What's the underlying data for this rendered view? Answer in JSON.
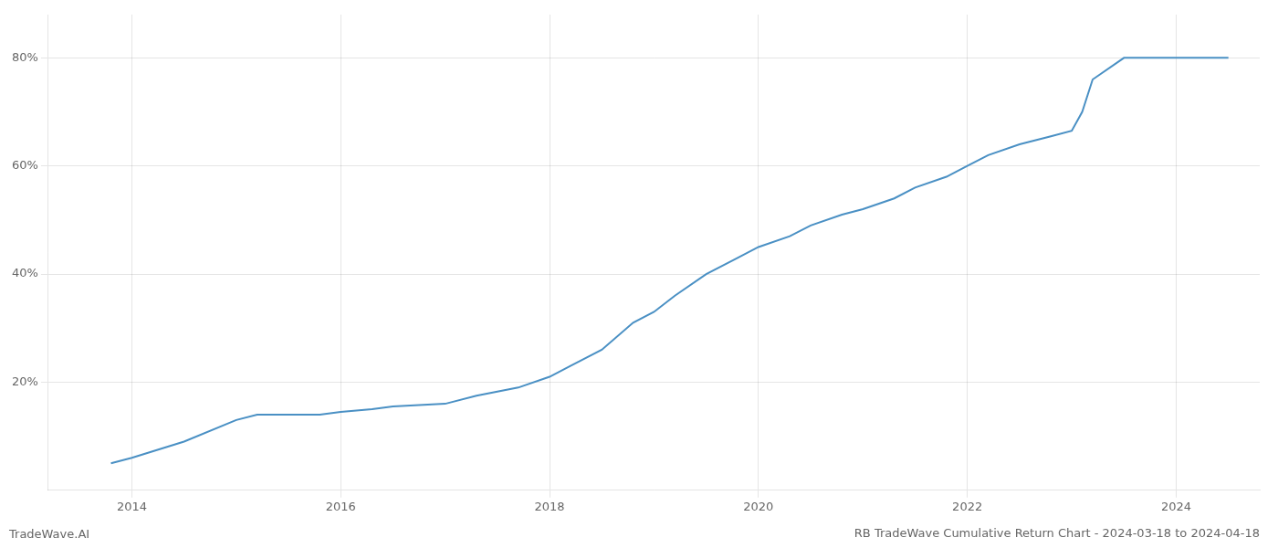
{
  "chart_data": {
    "type": "line",
    "title": "RB TradeWave Cumulative Return Chart - 2024-03-18 to 2024-04-18",
    "annotations": [
      "TradeWave.AI"
    ],
    "x": [
      2013.8,
      2014.0,
      2014.5,
      2015.0,
      2015.2,
      2015.8,
      2016.0,
      2016.3,
      2016.5,
      2017.0,
      2017.3,
      2017.7,
      2018.0,
      2018.2,
      2018.5,
      2018.8,
      2019.0,
      2019.2,
      2019.5,
      2019.8,
      2020.0,
      2020.3,
      2020.5,
      2020.8,
      2021.0,
      2021.3,
      2021.5,
      2021.8,
      2022.0,
      2022.2,
      2022.5,
      2022.8,
      2023.0,
      2023.1,
      2023.2,
      2023.5,
      2024.0,
      2024.3,
      2024.5
    ],
    "values": [
      0.05,
      0.06,
      0.09,
      0.13,
      0.14,
      0.14,
      0.145,
      0.15,
      0.155,
      0.16,
      0.175,
      0.19,
      0.21,
      0.23,
      0.26,
      0.31,
      0.33,
      0.36,
      0.4,
      0.43,
      0.45,
      0.47,
      0.49,
      0.51,
      0.52,
      0.54,
      0.56,
      0.58,
      0.6,
      0.62,
      0.64,
      0.655,
      0.665,
      0.7,
      0.76,
      0.8,
      0.8,
      0.8,
      0.8
    ],
    "color": "#4a90c4",
    "xlim": [
      2013.2,
      2024.8
    ],
    "xticks": [
      2014,
      2016,
      2018,
      2020,
      2022,
      2024
    ],
    "ylim": [
      0.0,
      0.88
    ],
    "yticks": [
      {
        "value": 0.2,
        "label": "20%"
      },
      {
        "value": 0.4,
        "label": "40%"
      },
      {
        "value": 0.6,
        "label": "60%"
      },
      {
        "value": 0.8,
        "label": "80%"
      }
    ],
    "grid": true
  }
}
